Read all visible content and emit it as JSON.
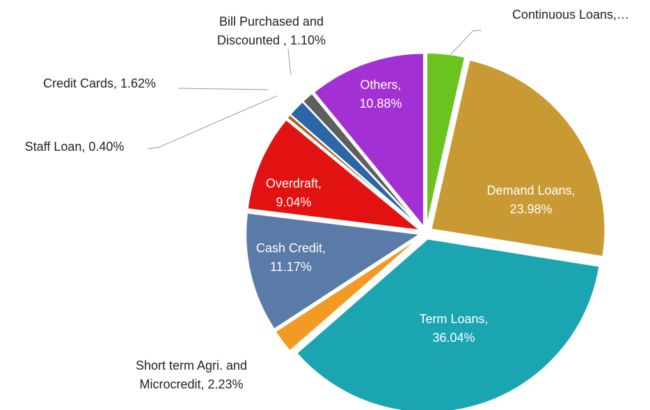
{
  "chart_data": {
    "type": "pie",
    "labels": [
      [
        "Continuous Loans,…"
      ],
      [
        "Demand Loans,",
        "23.98%"
      ],
      [
        "Term Loans,",
        "36.04%"
      ],
      [
        "Short term Agri. and",
        "Microcredit, 2.23%"
      ],
      [
        "Cash Credit,",
        "11.17%"
      ],
      [
        "Overdraft,",
        "9.04%"
      ],
      [
        "Staff Loan, 0.40%"
      ],
      [
        "Credit Cards, 1.62%"
      ],
      [
        "Bill Purchased and",
        "Discounted , 1.10%"
      ],
      [
        "Others,",
        "10.88%"
      ]
    ],
    "values": [
      3.54,
      23.98,
      36.04,
      2.23,
      11.17,
      9.04,
      0.4,
      1.62,
      1.1,
      10.88
    ],
    "colors": [
      "#6cc21f",
      "#c99a34",
      "#1aa5b0",
      "#f39a24",
      "#5a7aa8",
      "#e21212",
      "#b0601f",
      "#2a66a8",
      "#5e5e5e",
      "#a230d2"
    ]
  }
}
